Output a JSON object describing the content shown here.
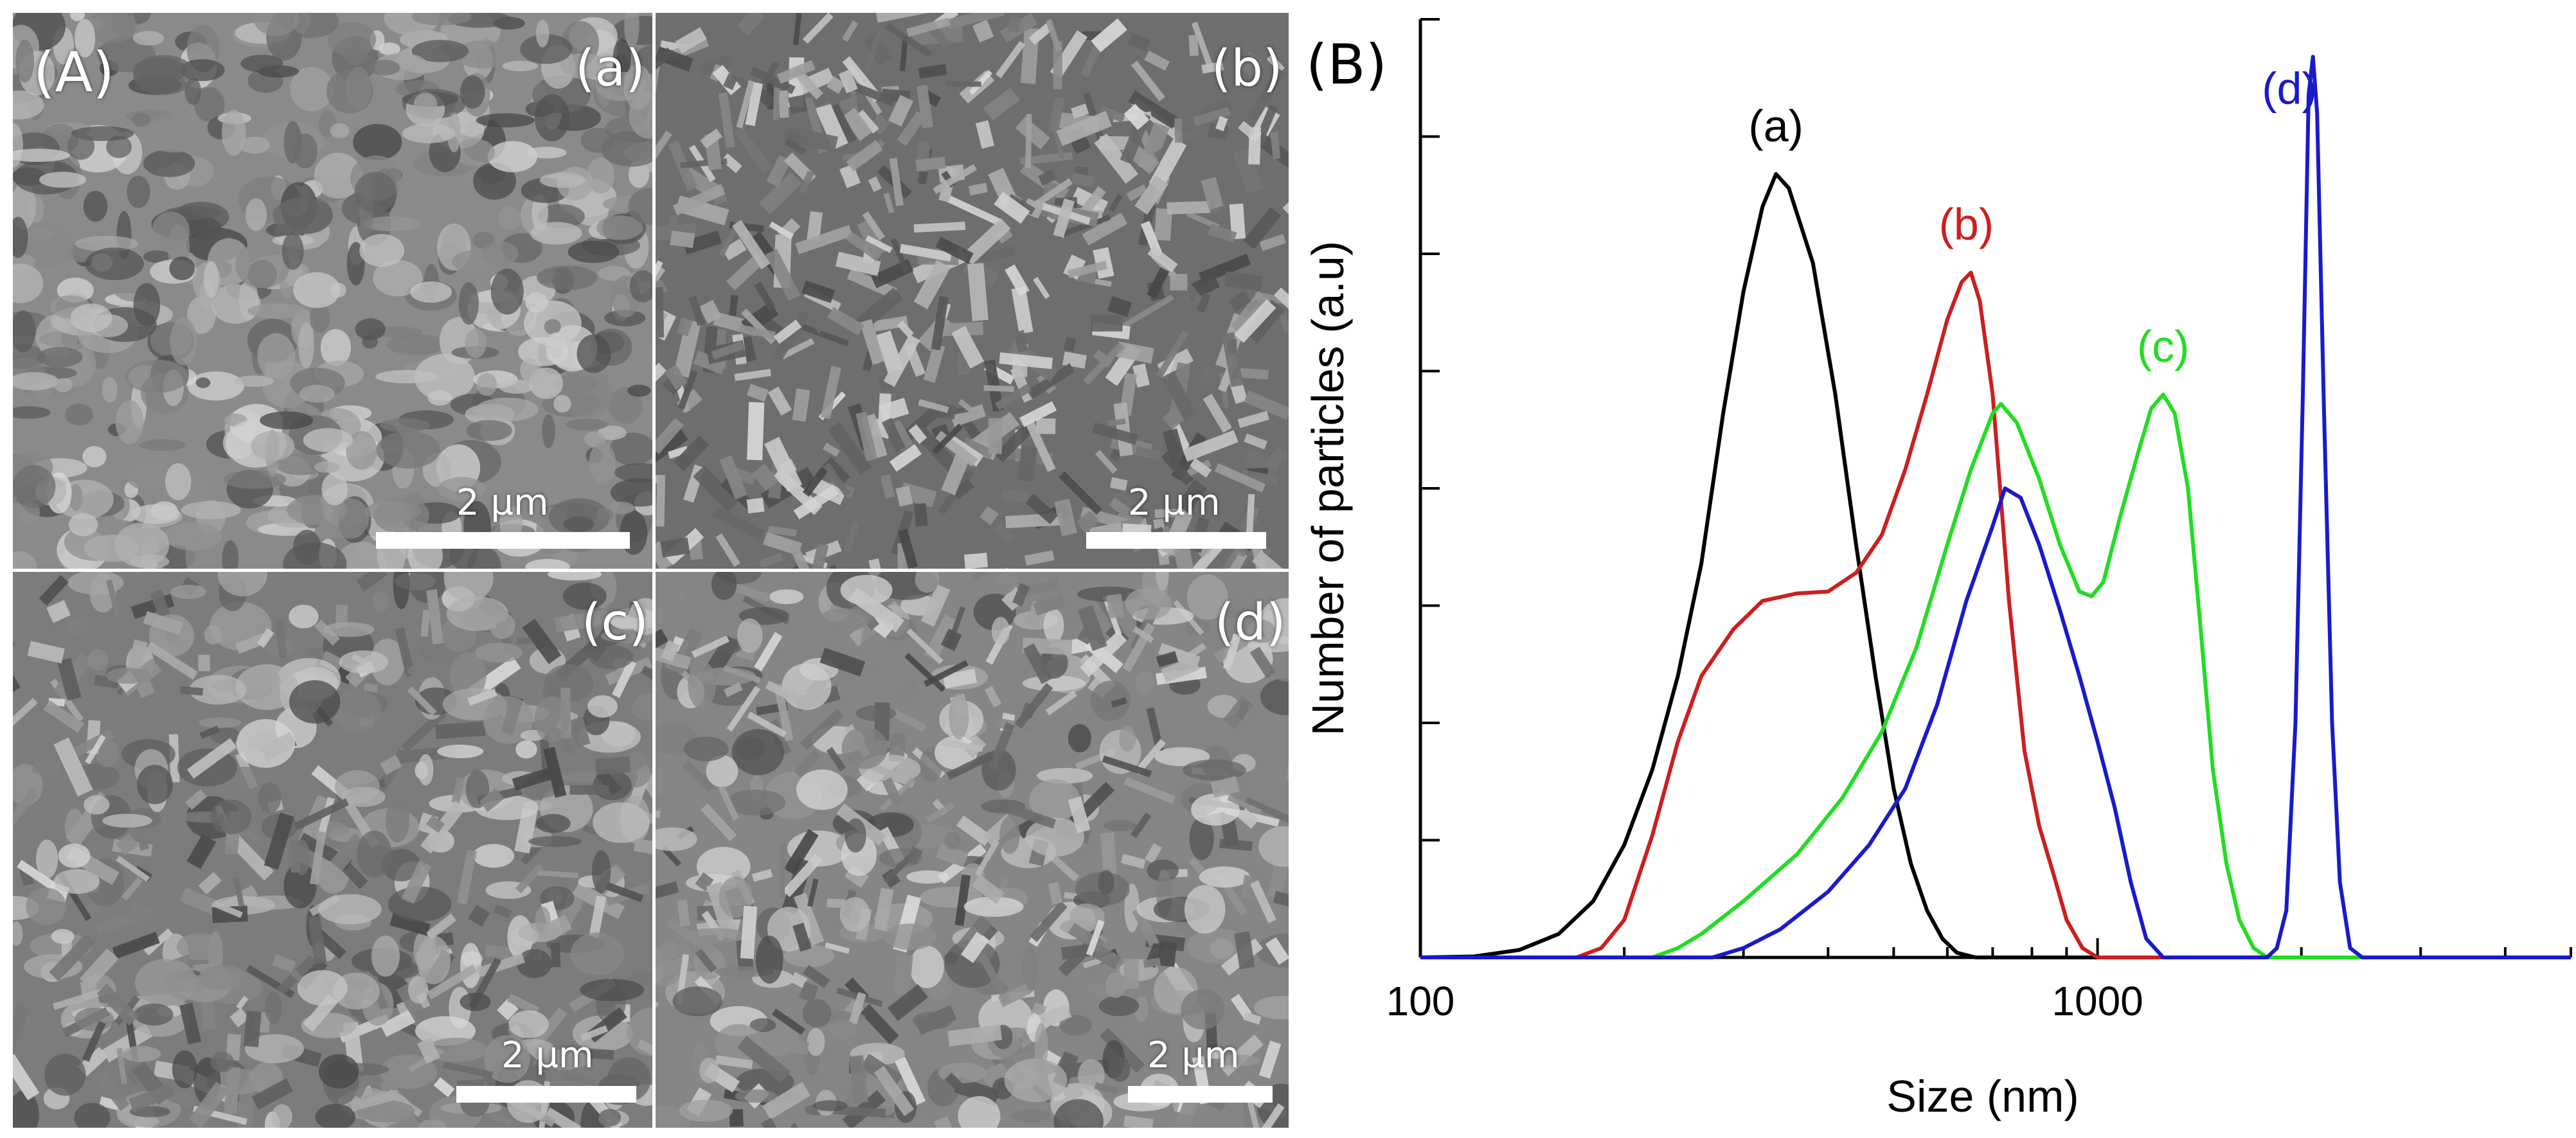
{
  "panel_A": {
    "label": "(A)",
    "images": [
      {
        "label": "(a)",
        "scale_text": "2 µm",
        "tone": "#8a8a8a"
      },
      {
        "label": "(b)",
        "scale_text": "2 µm",
        "tone": "#6e6e6e"
      },
      {
        "label": "(c)",
        "scale_text": "2 µm",
        "tone": "#7c7c7c"
      },
      {
        "label": "(d)",
        "scale_text": "2 µm",
        "tone": "#858585"
      }
    ]
  },
  "panel_B": {
    "label": "(B)"
  },
  "chart_data": {
    "type": "line",
    "title": "",
    "xlabel": "Size (nm)",
    "ylabel": "Number of particles (a.u)",
    "xscale": "log",
    "xlim": [
      100,
      5000
    ],
    "ylim": [
      0,
      100
    ],
    "x_ticks": [
      100,
      1000
    ],
    "x_tick_labels": [
      "100",
      "1000"
    ],
    "y_ticks": [
      0,
      12.5,
      25,
      37.5,
      50,
      62.5,
      75,
      87.5,
      100
    ],
    "grid": false,
    "legend": "none",
    "series": [
      {
        "name": "(a)",
        "color": "#000000",
        "points": [
          [
            100,
            0
          ],
          [
            120,
            0.1
          ],
          [
            140,
            0.8
          ],
          [
            160,
            2.5
          ],
          [
            180,
            6
          ],
          [
            200,
            12
          ],
          [
            220,
            20
          ],
          [
            240,
            30
          ],
          [
            260,
            42
          ],
          [
            280,
            58
          ],
          [
            300,
            71
          ],
          [
            320,
            80
          ],
          [
            335,
            83.5
          ],
          [
            350,
            82
          ],
          [
            380,
            74
          ],
          [
            410,
            60
          ],
          [
            440,
            44
          ],
          [
            470,
            30
          ],
          [
            500,
            18
          ],
          [
            530,
            10
          ],
          [
            560,
            5
          ],
          [
            590,
            2
          ],
          [
            620,
            0.5
          ],
          [
            660,
            0
          ],
          [
            5000,
            0
          ]
        ]
      },
      {
        "name": "(b)",
        "color": "#cc1f1f",
        "points": [
          [
            100,
            0
          ],
          [
            170,
            0
          ],
          [
            185,
            1
          ],
          [
            200,
            4
          ],
          [
            220,
            13
          ],
          [
            240,
            23
          ],
          [
            260,
            30
          ],
          [
            290,
            35
          ],
          [
            320,
            38
          ],
          [
            360,
            38.8
          ],
          [
            400,
            39
          ],
          [
            440,
            41
          ],
          [
            480,
            45
          ],
          [
            520,
            52
          ],
          [
            560,
            60
          ],
          [
            600,
            68
          ],
          [
            630,
            72
          ],
          [
            650,
            73
          ],
          [
            670,
            70
          ],
          [
            700,
            60
          ],
          [
            740,
            38
          ],
          [
            780,
            22
          ],
          [
            820,
            14
          ],
          [
            860,
            9
          ],
          [
            900,
            4
          ],
          [
            950,
            1
          ],
          [
            1000,
            0
          ],
          [
            5000,
            0
          ]
        ]
      },
      {
        "name": "(c)",
        "color": "#22dd22",
        "points": [
          [
            100,
            0
          ],
          [
            220,
            0
          ],
          [
            240,
            1
          ],
          [
            260,
            2.5
          ],
          [
            300,
            6
          ],
          [
            360,
            11
          ],
          [
            420,
            17
          ],
          [
            480,
            24
          ],
          [
            540,
            33
          ],
          [
            600,
            44
          ],
          [
            650,
            52
          ],
          [
            700,
            58
          ],
          [
            720,
            59
          ],
          [
            760,
            57
          ],
          [
            820,
            51
          ],
          [
            880,
            44
          ],
          [
            940,
            39
          ],
          [
            980,
            38.5
          ],
          [
            1020,
            40
          ],
          [
            1080,
            47
          ],
          [
            1150,
            54
          ],
          [
            1200,
            58.5
          ],
          [
            1250,
            60
          ],
          [
            1300,
            58
          ],
          [
            1360,
            50
          ],
          [
            1420,
            35
          ],
          [
            1480,
            20
          ],
          [
            1550,
            10
          ],
          [
            1620,
            4
          ],
          [
            1700,
            1
          ],
          [
            1780,
            0
          ],
          [
            5000,
            0
          ]
        ]
      },
      {
        "name": "(d)",
        "color": "#1a1acc",
        "points": [
          [
            100,
            0
          ],
          [
            270,
            0
          ],
          [
            300,
            1
          ],
          [
            340,
            3
          ],
          [
            400,
            7
          ],
          [
            460,
            12
          ],
          [
            520,
            18
          ],
          [
            580,
            27
          ],
          [
            640,
            38
          ],
          [
            700,
            46
          ],
          [
            730,
            50
          ],
          [
            770,
            49
          ],
          [
            820,
            44
          ],
          [
            880,
            37
          ],
          [
            940,
            30
          ],
          [
            1000,
            23
          ],
          [
            1060,
            16
          ],
          [
            1120,
            8
          ],
          [
            1180,
            2
          ],
          [
            1250,
            0
          ],
          [
            1780,
            0
          ],
          [
            1840,
            1
          ],
          [
            1900,
            5
          ],
          [
            1960,
            25
          ],
          [
            2010,
            60
          ],
          [
            2050,
            92
          ],
          [
            2080,
            96
          ],
          [
            2110,
            90
          ],
          [
            2160,
            58
          ],
          [
            2220,
            25
          ],
          [
            2280,
            8
          ],
          [
            2360,
            1
          ],
          [
            2460,
            0
          ],
          [
            5000,
            0
          ]
        ]
      }
    ],
    "annotations": [
      {
        "text": "(a)",
        "x": 335,
        "y": 87,
        "color": "#000000"
      },
      {
        "text": "(b)",
        "x": 640,
        "y": 76.5,
        "color": "#cc1f1f"
      },
      {
        "text": "(c)",
        "x": 1250,
        "y": 63.5,
        "color": "#22dd22"
      },
      {
        "text": "(d)",
        "x": 1920,
        "y": 91,
        "color": "#1a1acc"
      }
    ]
  }
}
